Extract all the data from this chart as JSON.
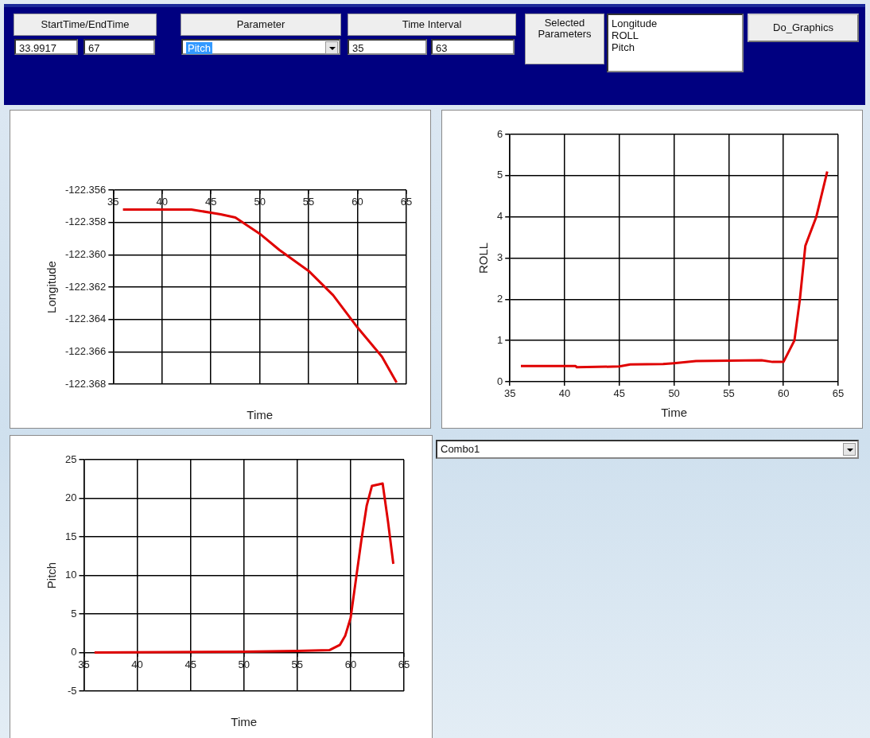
{
  "chart_data": [
    {
      "type": "line",
      "xlabel": "Time",
      "ylabel": "Longitude",
      "color": "#e00000",
      "grid": true,
      "x": [
        36,
        40,
        43,
        46,
        47.5,
        50,
        52,
        55,
        57.5,
        60,
        62.5,
        64
      ],
      "values": [
        -122.3572,
        -122.3572,
        -122.3572,
        -122.3575,
        -122.3577,
        -122.3587,
        -122.3597,
        -122.361,
        -122.3625,
        -122.3645,
        -122.3663,
        -122.3679
      ],
      "xlim": [
        35,
        65
      ],
      "xticks": [
        35,
        40,
        45,
        50,
        55,
        60,
        65
      ],
      "ylim": [
        -122.368,
        -122.356
      ],
      "yticks": [
        {
          "value": -122.368,
          "label": "-122.368"
        },
        {
          "value": -122.366,
          "label": "-122.366"
        },
        {
          "value": -122.364,
          "label": "-122.364"
        },
        {
          "value": -122.362,
          "label": "-122.362"
        },
        {
          "value": -122.36,
          "label": "-122.360"
        },
        {
          "value": -122.358,
          "label": "-122.358"
        },
        {
          "value": -122.356,
          "label": "-122.356"
        }
      ]
    },
    {
      "type": "line",
      "xlabel": "Time",
      "ylabel": "ROLL",
      "color": "#e00000",
      "grid": true,
      "x": [
        36,
        41,
        41.1,
        45,
        46,
        49,
        50,
        52,
        58,
        59,
        60,
        61,
        61.5,
        62,
        63,
        64
      ],
      "values": [
        0.38,
        0.38,
        0.35,
        0.37,
        0.42,
        0.43,
        0.45,
        0.5,
        0.52,
        0.48,
        0.48,
        1.0,
        2.0,
        3.3,
        4.0,
        5.1
      ],
      "xlim": [
        35,
        65
      ],
      "xticks": [
        35,
        40,
        45,
        50,
        55,
        60,
        65
      ],
      "ylim": [
        0,
        6
      ],
      "yticks": [
        0,
        1,
        2,
        3,
        4,
        5,
        6
      ]
    },
    {
      "type": "line",
      "xlabel": "Time",
      "ylabel": "Pitch",
      "color": "#e00000",
      "grid": true,
      "x": [
        36,
        50,
        55,
        58,
        59,
        59.5,
        60,
        60.5,
        61,
        61.5,
        62,
        63,
        63.5,
        64
      ],
      "values": [
        0,
        0.1,
        0.2,
        0.3,
        1.0,
        2.2,
        4.5,
        9.5,
        14.5,
        19,
        21.6,
        21.9,
        17,
        11.5
      ],
      "xlim": [
        35,
        65
      ],
      "xticks": [
        35,
        40,
        45,
        50,
        55,
        60,
        65
      ],
      "ylim": [
        -5,
        25
      ],
      "yticks": [
        -5,
        0,
        5,
        10,
        15,
        20,
        25
      ]
    },
    {
      "type": "other",
      "annotations": [
        "StartTime/EndTime",
        "33.9917",
        "67",
        "Parameter",
        "Pitch",
        "Time Interval",
        "35",
        "63",
        "Selected Parameters",
        "Longitude",
        "ROLL",
        "Pitch",
        "Do_Graphics",
        "Combo1"
      ]
    }
  ]
}
